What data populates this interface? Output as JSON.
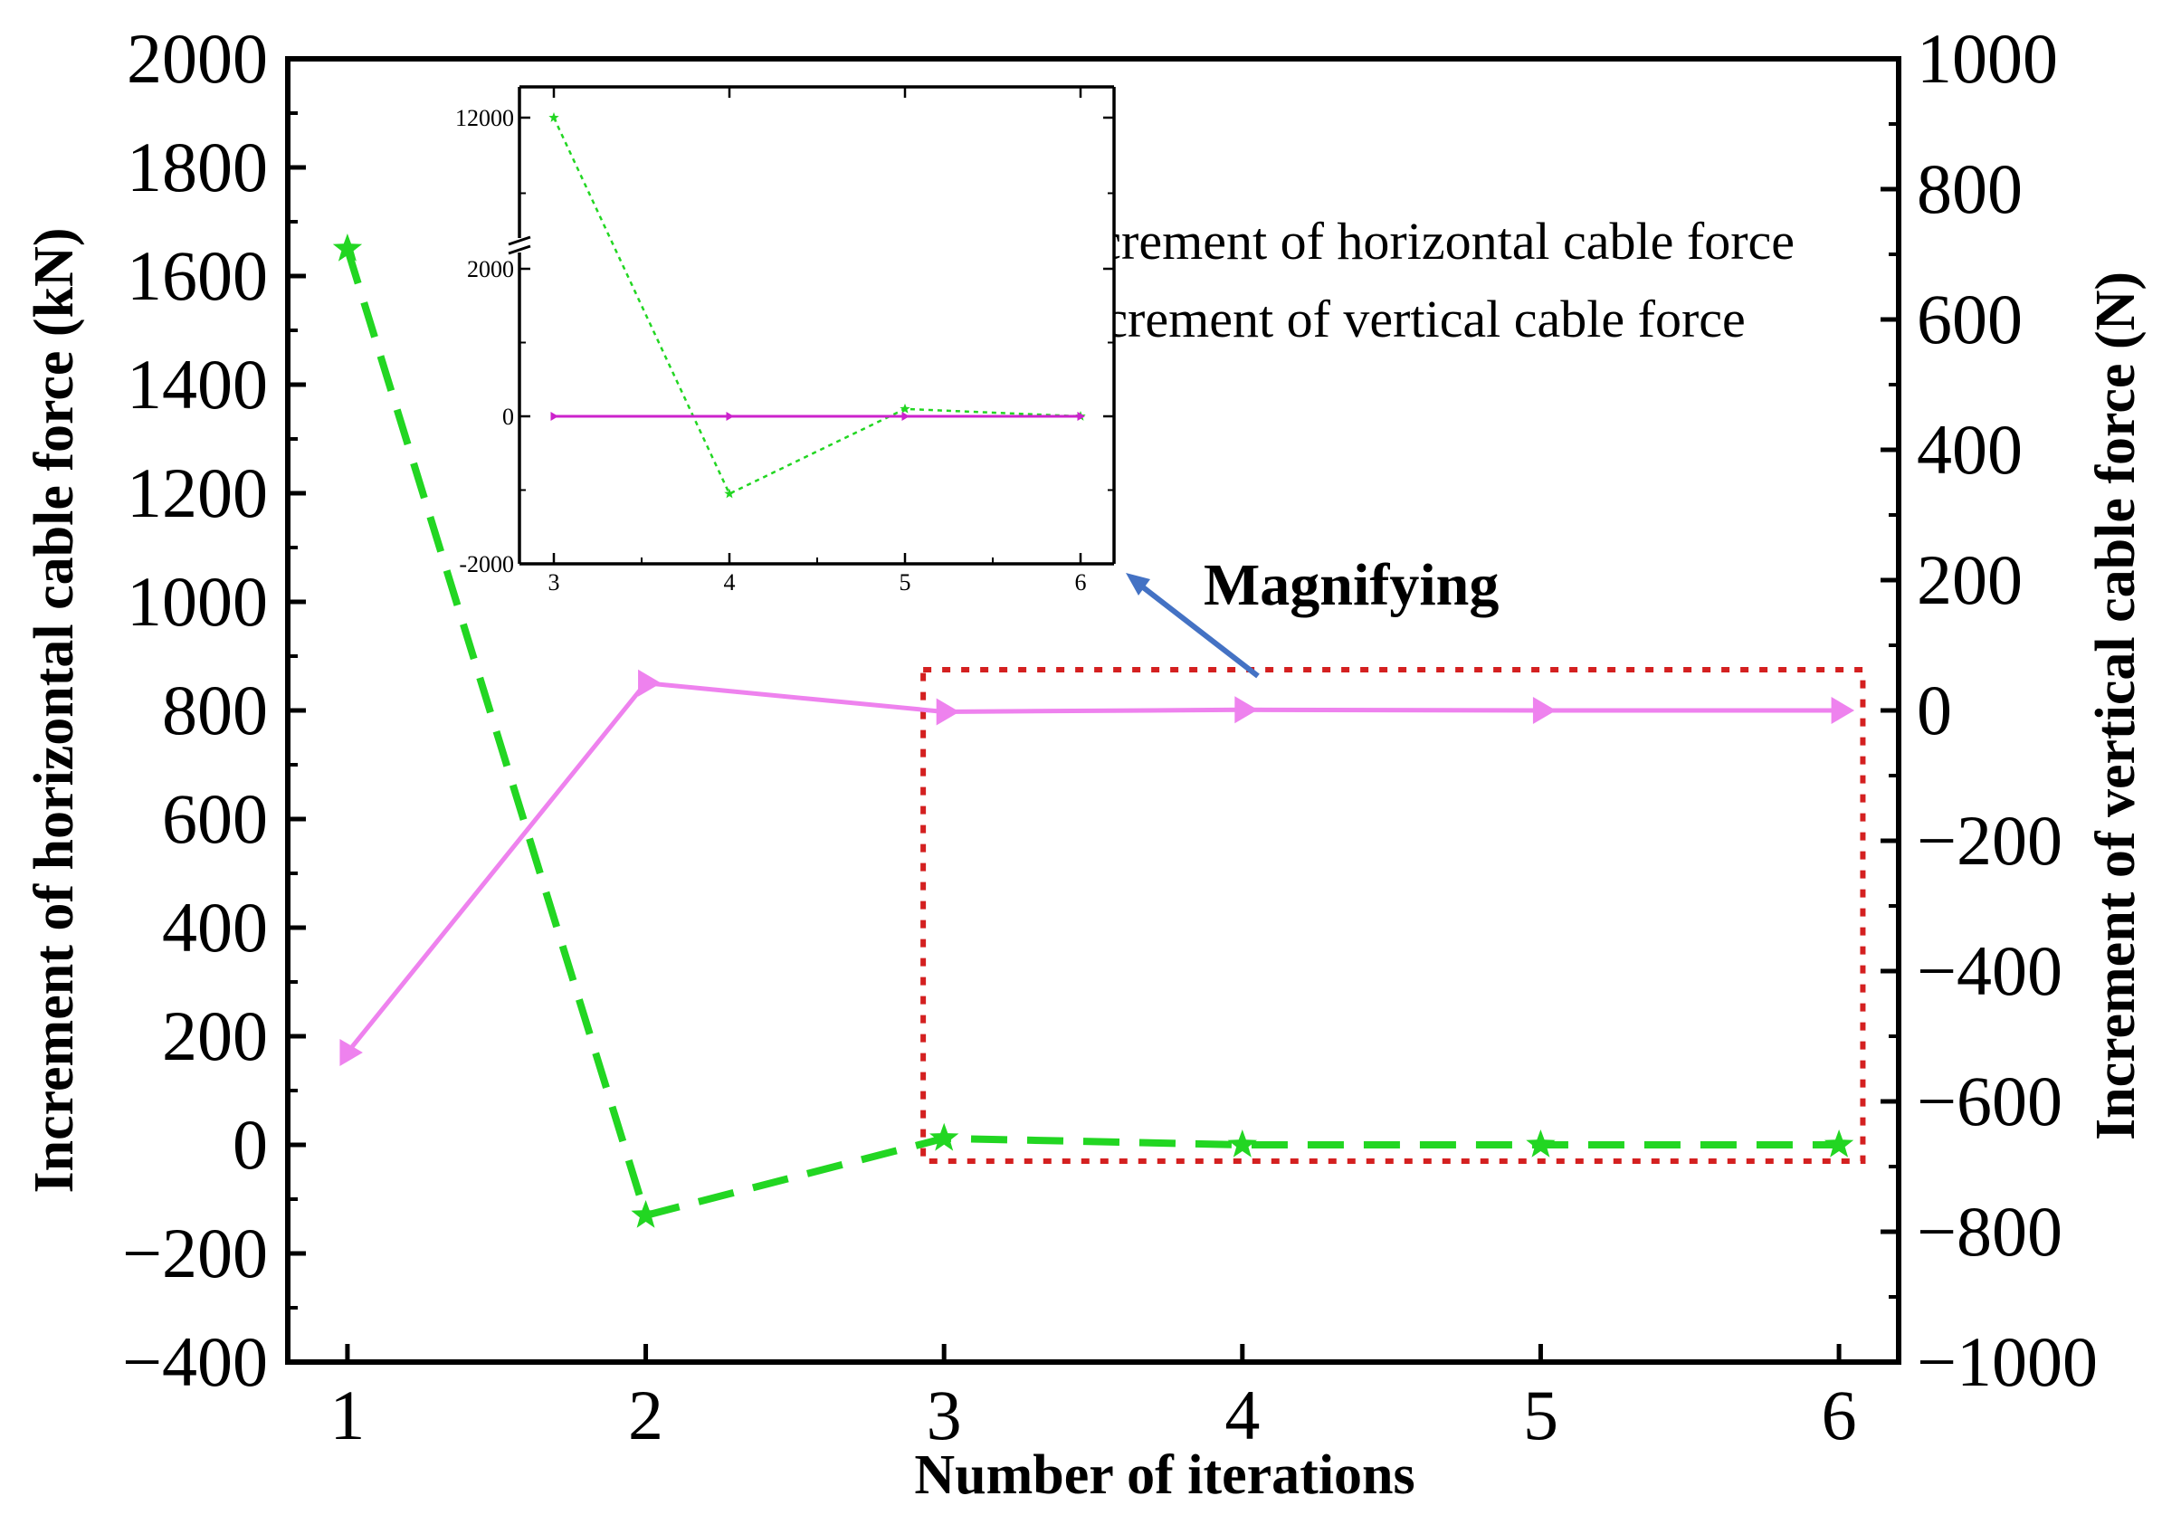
{
  "colors": {
    "horizontal": "#22d622",
    "vertical": "#ee82ee",
    "inset_vertical": "#cc22cc",
    "box": "#d42020",
    "arrow": "#4472c4",
    "annotation": "#4472c4",
    "axis": "#000000"
  },
  "chart_data": [
    {
      "id": "main",
      "type": "line",
      "xlabel": "Number of iterations",
      "ylabel_left": "Increment of horizontal cable force (kN)",
      "ylabel_right": "Increment of vertical cable force (N)",
      "x": [
        1,
        2,
        3,
        4,
        5,
        6
      ],
      "xlim": [
        0.8,
        6.2
      ],
      "xticks": [
        "1",
        "2",
        "3",
        "4",
        "5",
        "6"
      ],
      "ylim_left": [
        -400,
        2000
      ],
      "yticks_left": [
        "2000",
        "1800",
        "1600",
        "1400",
        "1200",
        "1000",
        "800",
        "600",
        "400",
        "200",
        "0",
        "−200",
        "−400"
      ],
      "ylim_right": [
        -1000,
        1000
      ],
      "yticks_right": [
        "1000",
        "800",
        "600",
        "400",
        "200",
        "0",
        "−200",
        "−400",
        "−600",
        "−800",
        "−1000"
      ],
      "series": [
        {
          "name": "Increment of horizontal cable force",
          "axis": "left",
          "marker": "star",
          "line": "dashed",
          "values": [
            1650,
            -130,
            12,
            0,
            0,
            0
          ]
        },
        {
          "name": "Increment of vertical cable force",
          "axis": "right",
          "marker": "triangle-right",
          "line": "solid",
          "values": [
            -525,
            42,
            -2,
            1,
            0,
            0
          ]
        }
      ],
      "highlight_box": {
        "x_range": [
          2.93,
          6.08
        ],
        "y_range_left": [
          -30,
          875
        ]
      }
    },
    {
      "id": "inset",
      "type": "line",
      "x": [
        3,
        4,
        5,
        6
      ],
      "xticks": [
        "3",
        "4",
        "5",
        "6"
      ],
      "yticks": [
        "12000",
        "2000",
        "0",
        "-2000"
      ],
      "series": [
        {
          "name": "horizontal",
          "values": [
            12000,
            -1050,
            100,
            0
          ]
        },
        {
          "name": "vertical",
          "values": [
            0,
            0,
            0,
            0
          ]
        }
      ]
    }
  ],
  "annotation": {
    "text": "Magnifying"
  }
}
